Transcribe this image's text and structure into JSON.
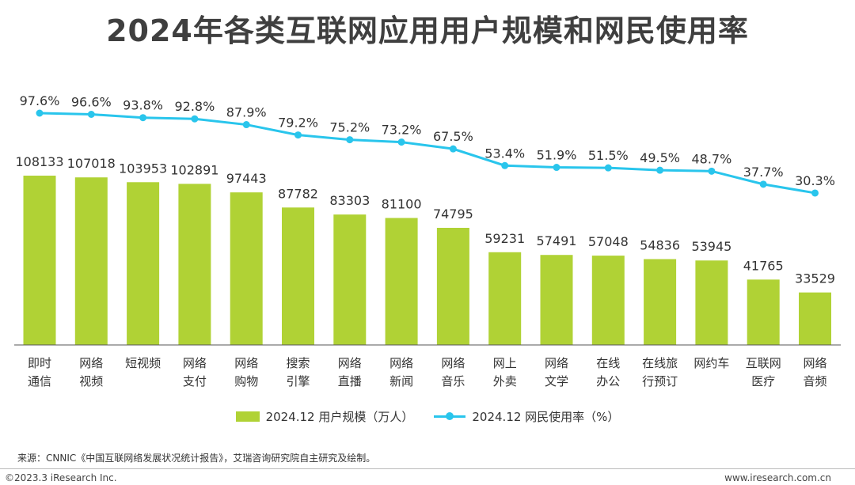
{
  "chart_data": {
    "type": "bar",
    "title": "2024年各类互联网应用用户规模和网民使用率",
    "categories": [
      [
        "即时",
        "通信"
      ],
      [
        "网络",
        "视频"
      ],
      [
        "短视频"
      ],
      [
        "网络",
        "支付"
      ],
      [
        "网络",
        "购物"
      ],
      [
        "搜索",
        "引擎"
      ],
      [
        "网络",
        "直播"
      ],
      [
        "网络",
        "新闻"
      ],
      [
        "网络",
        "音乐"
      ],
      [
        "网上",
        "外卖"
      ],
      [
        "网络",
        "文学"
      ],
      [
        "在线",
        "办公"
      ],
      [
        "在线旅",
        "行预订"
      ],
      [
        "网约车"
      ],
      [
        "互联网",
        "医疗"
      ],
      [
        "网络",
        "音频"
      ]
    ],
    "series": [
      {
        "name": "2024.12 用户规模（万人）",
        "type": "bar",
        "color": "#b0d235",
        "values": [
          108133,
          107018,
          103953,
          102891,
          97443,
          87782,
          83303,
          81100,
          74795,
          59231,
          57491,
          57048,
          54836,
          53945,
          41765,
          33529
        ],
        "labels": [
          "108133",
          "107018",
          "103953",
          "102891",
          "97443",
          "87782",
          "83303",
          "81100",
          "74795",
          "59231",
          "57491",
          "57048",
          "54836",
          "53945",
          "41765",
          "33529"
        ]
      },
      {
        "name": "2024.12 网民使用率（%）",
        "type": "line",
        "color": "#29c5ec",
        "values": [
          97.6,
          96.6,
          93.8,
          92.8,
          87.9,
          79.2,
          75.2,
          73.2,
          67.5,
          53.4,
          51.9,
          51.5,
          49.5,
          48.7,
          37.7,
          30.3
        ],
        "labels": [
          "97.6%",
          "96.6%",
          "93.8%",
          "92.8%",
          "87.9%",
          "79.2%",
          "75.2%",
          "73.2%",
          "67.5%",
          "53.4%",
          "51.9%",
          "51.5%",
          "49.5%",
          "48.7%",
          "37.7%",
          "30.3%"
        ]
      }
    ],
    "legend_position": "bottom",
    "grid": false
  },
  "source_note": "来源：CNNIC《中国互联网络发展状况统计报告》，艾瑞咨询研究院自主研究及绘制。",
  "footer": {
    "copyright": "©2023.3 iResearch Inc.",
    "website": "www.iresearch.com.cn"
  }
}
